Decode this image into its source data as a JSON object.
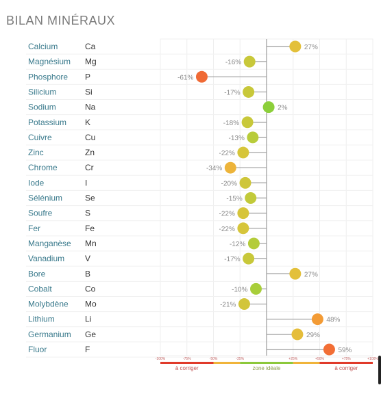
{
  "title": "BILAN MINÉRAUX",
  "chart_data": {
    "type": "scatter",
    "title": "BILAN MINÉRAUX",
    "xlim": [
      -100,
      100
    ],
    "x_ticks": [
      "-100%",
      "-75%",
      "-50%",
      "-25%",
      "+25%",
      "+50%",
      "+75%",
      "+100%"
    ],
    "rows": [
      {
        "name": "Calcium",
        "symbol": "Ca",
        "value": 27,
        "label": "27%",
        "color": "#e3c03a"
      },
      {
        "name": "Magnésium",
        "symbol": "Mg",
        "value": -16,
        "label": "-16%",
        "color": "#c8c83a"
      },
      {
        "name": "Phosphore",
        "symbol": "P",
        "value": -61,
        "label": "-61%",
        "color": "#f06a35"
      },
      {
        "name": "Silicium",
        "symbol": "Si",
        "value": -17,
        "label": "-17%",
        "color": "#c8c83a"
      },
      {
        "name": "Sodium",
        "symbol": "Na",
        "value": 2,
        "label": "2%",
        "color": "#8ccf3a"
      },
      {
        "name": "Potassium",
        "symbol": "K",
        "value": -18,
        "label": "-18%",
        "color": "#c8c83a"
      },
      {
        "name": "Cuivre",
        "symbol": "Cu",
        "value": -13,
        "label": "-13%",
        "color": "#b8cc3a"
      },
      {
        "name": "Zinc",
        "symbol": "Zn",
        "value": -22,
        "label": "-22%",
        "color": "#d6c53a"
      },
      {
        "name": "Chrome",
        "symbol": "Cr",
        "value": -34,
        "label": "-34%",
        "color": "#edb43a"
      },
      {
        "name": "Iode",
        "symbol": "I",
        "value": -20,
        "label": "-20%",
        "color": "#cec63a"
      },
      {
        "name": "Sélénium",
        "symbol": "Se",
        "value": -15,
        "label": "-15%",
        "color": "#c2ca3a"
      },
      {
        "name": "Soufre",
        "symbol": "S",
        "value": -22,
        "label": "-22%",
        "color": "#d6c53a"
      },
      {
        "name": "Fer",
        "symbol": "Fe",
        "value": -22,
        "label": "-22%",
        "color": "#d6c53a"
      },
      {
        "name": "Manganèse",
        "symbol": "Mn",
        "value": -12,
        "label": "-12%",
        "color": "#b4cc3a"
      },
      {
        "name": "Vanadium",
        "symbol": "V",
        "value": -17,
        "label": "-17%",
        "color": "#c8c83a"
      },
      {
        "name": "Bore",
        "symbol": "B",
        "value": 27,
        "label": "27%",
        "color": "#e3c03a"
      },
      {
        "name": "Cobalt",
        "symbol": "Co",
        "value": -10,
        "label": "-10%",
        "color": "#a8ce3a"
      },
      {
        "name": "Molybdène",
        "symbol": "Mo",
        "value": -21,
        "label": "-21%",
        "color": "#d2c53a"
      },
      {
        "name": "Lithium",
        "symbol": "Li",
        "value": 48,
        "label": "48%",
        "color": "#f39b35"
      },
      {
        "name": "Germanium",
        "symbol": "Ge",
        "value": 29,
        "label": "29%",
        "color": "#e5bd3a"
      },
      {
        "name": "Fluor",
        "symbol": "F",
        "value": 59,
        "label": "59%",
        "color": "#f26e35"
      }
    ],
    "zones": [
      {
        "label": "à corriger",
        "from": -100,
        "to": -50,
        "color": "#e03a2a"
      },
      {
        "label": "",
        "from": -50,
        "to": -25,
        "color": "#f0b43a"
      },
      {
        "label": "zone idéale",
        "from": -25,
        "to": 25,
        "color": "#8cc83a"
      },
      {
        "label": "",
        "from": 25,
        "to": 50,
        "color": "#f0b43a"
      },
      {
        "label": "à corriger",
        "from": 50,
        "to": 100,
        "color": "#e03a2a"
      }
    ],
    "grid": true
  }
}
